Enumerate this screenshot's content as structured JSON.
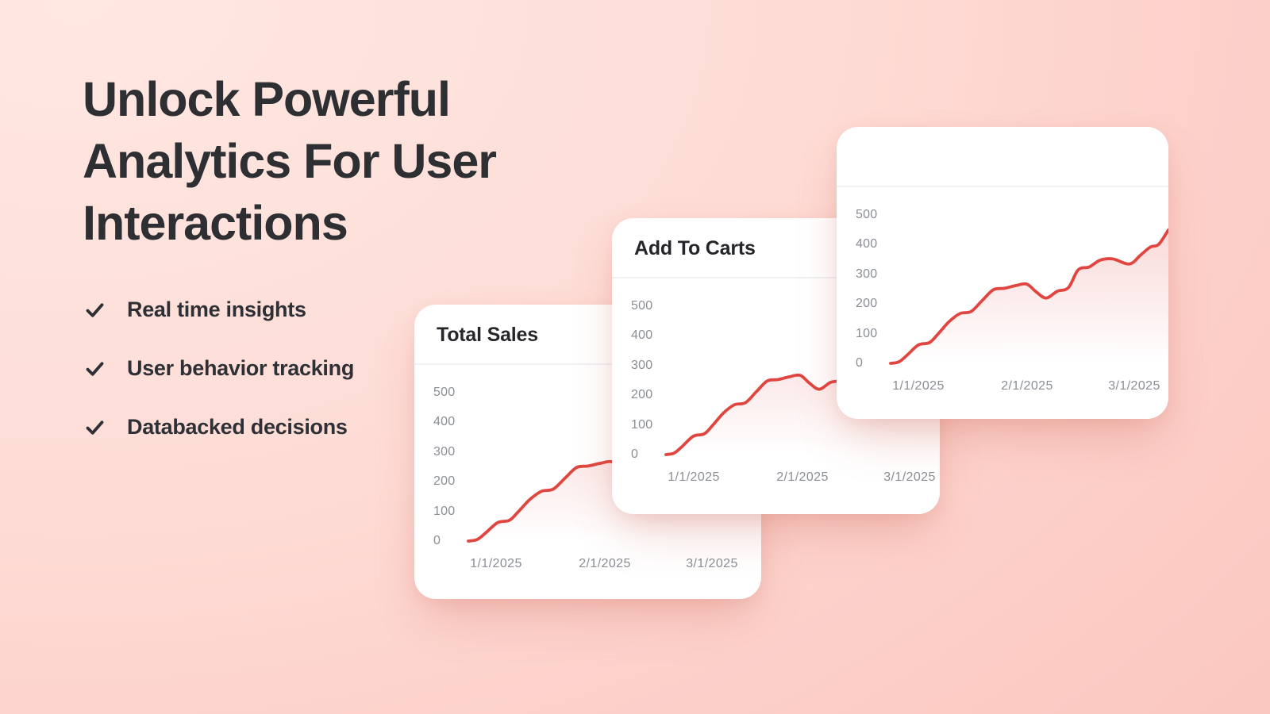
{
  "hero": {
    "heading_lines": [
      "Unlock Powerful",
      "Analytics For User",
      "Interactions"
    ],
    "heading_color": "#2d2f33",
    "bullets": [
      {
        "icon": "check-icon",
        "label": "Real time insights"
      },
      {
        "icon": "check-icon",
        "label": "User behavior tracking"
      },
      {
        "icon": "check-icon",
        "label": "Databacked decisions"
      }
    ]
  },
  "theme": {
    "background_top_left": "#ffe8e2",
    "background_bottom_right": "#f9c1b9",
    "card_background": "#ffffff",
    "divider_color": "#eff1f4",
    "axis_label_color": "#8a8e95",
    "line_color": "#e0453f",
    "fill_color": "#e0453f"
  },
  "chart_data": [
    {
      "type": "line",
      "title": "Total Sales",
      "x_tick_labels": [
        "1/1/2025",
        "2/1/2025",
        "3/1/2025"
      ],
      "y_tick_labels": [
        0,
        100,
        200,
        300,
        400,
        500
      ],
      "ylim": [
        0,
        500
      ],
      "grid": false,
      "legend": false,
      "line_color": "#e0453f",
      "series": [
        {
          "name": "Total Sales",
          "x": [
            0,
            0.03,
            0.06,
            0.1,
            0.14,
            0.17,
            0.21,
            0.25,
            0.29,
            0.33,
            0.37,
            0.41,
            0.45,
            0.49,
            0.525,
            0.56,
            0.6,
            0.64,
            0.675,
            0.715,
            0.755,
            0.8,
            0.86,
            0.9,
            0.935,
            0.965,
            1.0
          ],
          "values": [
            0,
            5,
            28,
            62,
            70,
            98,
            140,
            168,
            175,
            212,
            248,
            253,
            262,
            267,
            240,
            220,
            243,
            255,
            315,
            325,
            348,
            352,
            335,
            365,
            392,
            401,
            450
          ]
        }
      ]
    },
    {
      "type": "line",
      "title": "Add To Carts",
      "x_tick_labels": [
        "1/1/2025",
        "2/1/2025",
        "3/1/2025"
      ],
      "y_tick_labels": [
        0,
        100,
        200,
        300,
        400,
        500
      ],
      "ylim": [
        0,
        500
      ],
      "grid": false,
      "legend": false,
      "line_color": "#e0453f",
      "series": [
        {
          "name": "Add To Carts",
          "x": [
            0,
            0.03,
            0.06,
            0.1,
            0.14,
            0.17,
            0.21,
            0.25,
            0.29,
            0.33,
            0.37,
            0.41,
            0.45,
            0.49,
            0.525,
            0.56,
            0.6,
            0.64,
            0.675,
            0.715,
            0.755,
            0.8,
            0.86,
            0.9,
            0.935,
            0.965,
            1.0
          ],
          "values": [
            0,
            5,
            28,
            62,
            70,
            98,
            140,
            168,
            175,
            212,
            248,
            253,
            262,
            267,
            240,
            220,
            243,
            255,
            315,
            325,
            348,
            352,
            335,
            365,
            392,
            401,
            450
          ]
        }
      ]
    },
    {
      "type": "line",
      "title": "",
      "x_tick_labels": [
        "1/1/2025",
        "2/1/2025",
        "3/1/2025"
      ],
      "y_tick_labels": [
        0,
        100,
        200,
        300,
        400,
        500
      ],
      "ylim": [
        0,
        500
      ],
      "grid": false,
      "legend": false,
      "line_color": "#e0453f",
      "series": [
        {
          "name": "",
          "x": [
            0,
            0.03,
            0.06,
            0.1,
            0.14,
            0.17,
            0.21,
            0.25,
            0.29,
            0.33,
            0.37,
            0.41,
            0.45,
            0.49,
            0.525,
            0.56,
            0.6,
            0.64,
            0.675,
            0.715,
            0.755,
            0.8,
            0.86,
            0.9,
            0.935,
            0.965,
            1.0
          ],
          "values": [
            0,
            5,
            28,
            62,
            70,
            98,
            140,
            168,
            175,
            212,
            248,
            253,
            262,
            267,
            240,
            220,
            243,
            255,
            315,
            325,
            348,
            352,
            335,
            365,
            392,
            401,
            450
          ]
        }
      ]
    }
  ]
}
